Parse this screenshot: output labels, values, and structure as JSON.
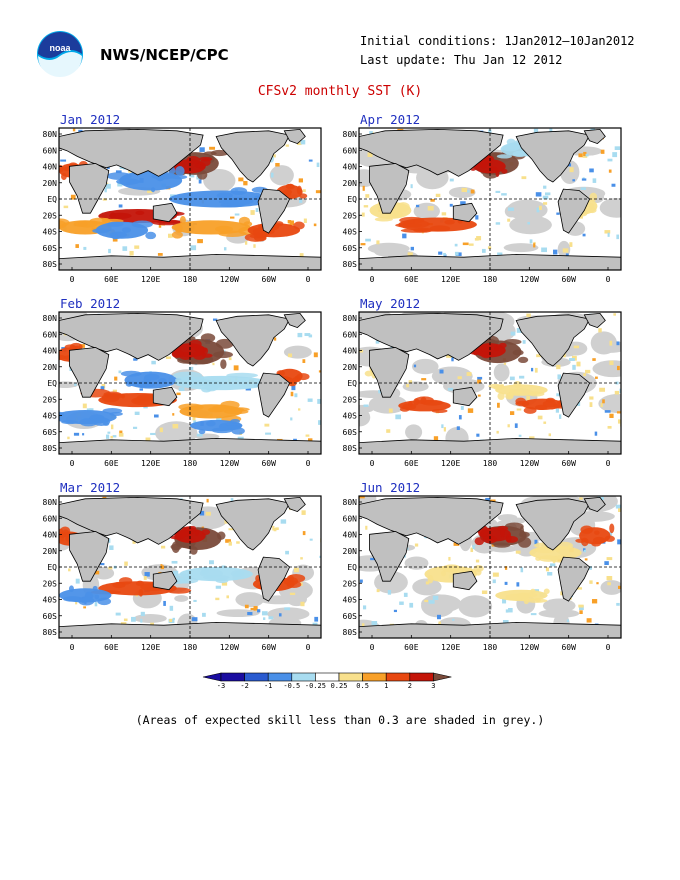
{
  "header": {
    "agency": "NWS/NCEP/CPC",
    "initial_conditions": "Initial conditions: 1Jan2012–10Jan2012",
    "last_update": "Last update: Thu Jan 12 2012",
    "title": "CFSv2 monthly SST (K)",
    "logo_text": "noaa"
  },
  "panels": [
    {
      "label": "Jan 2012"
    },
    {
      "label": "Apr 2012"
    },
    {
      "label": "Feb 2012"
    },
    {
      "label": "May 2012"
    },
    {
      "label": "Mar 2012"
    },
    {
      "label": "Jun 2012"
    }
  ],
  "axes": {
    "lat_labels": [
      "80N",
      "60N",
      "40N",
      "20N",
      "EQ",
      "20S",
      "40S",
      "60S",
      "80S"
    ],
    "lon_labels": [
      "0",
      "60E",
      "120E",
      "180",
      "120W",
      "60W",
      "0"
    ]
  },
  "colorbar": {
    "labels": [
      "-3",
      "-2",
      "-1",
      "-0.5",
      "-0.25",
      "0.25",
      "0.5",
      "1",
      "2",
      "3"
    ],
    "colors": [
      "#1a0ca0",
      "#2a5bd0",
      "#4a90e8",
      "#a8dcf0",
      "#ffffff",
      "#f8e08c",
      "#f8a028",
      "#e84810",
      "#c41408",
      "#7a4a3a"
    ]
  },
  "footnote": "(Areas of expected skill less than 0.3 are shaded in grey.)",
  "colors": {
    "land": "#c0c0c0",
    "skill_grey": "#d0d0d0",
    "title": "#cc0000",
    "panel_label": "#2030c0"
  }
}
